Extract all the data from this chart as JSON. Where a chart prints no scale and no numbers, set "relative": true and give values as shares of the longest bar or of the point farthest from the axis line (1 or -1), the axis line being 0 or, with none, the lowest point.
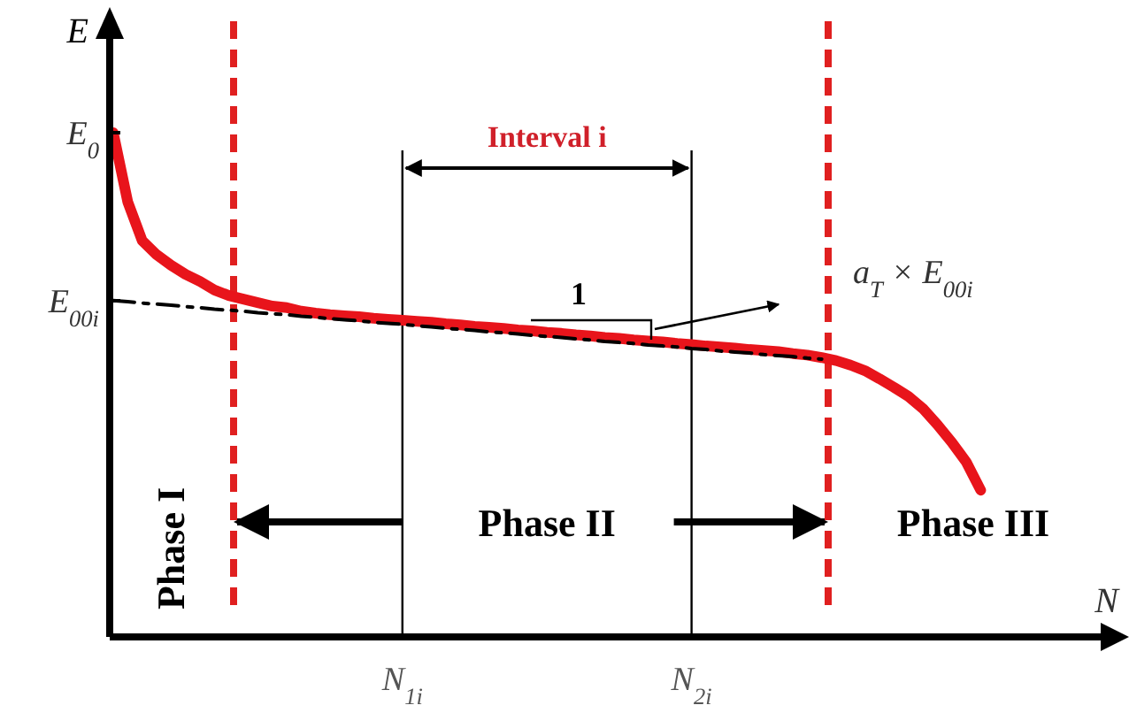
{
  "chart_data": {
    "type": "line",
    "relative": true,
    "xlabel": "N",
    "ylabel": "E",
    "categories": [
      null,
      null,
      null,
      null,
      null,
      null,
      null,
      null,
      null,
      null,
      null,
      null,
      null,
      null,
      null,
      null,
      null,
      null,
      null,
      null,
      "N$_{1i}$",
      null,
      null,
      null,
      null,
      null,
      null,
      null,
      null,
      null,
      null,
      null,
      null,
      null,
      null,
      null,
      null,
      null,
      null,
      null,
      "N$_{2i}$",
      null,
      null,
      null,
      null,
      null,
      null,
      null,
      null,
      null,
      null,
      null,
      null,
      null,
      null,
      null,
      null,
      null,
      null,
      null,
      null
    ],
    "series": [
      {
        "color": "#e8141b",
        "values": [
          1.0,
          0.863,
          0.786,
          0.758,
          0.737,
          0.719,
          0.705,
          0.688,
          0.677,
          0.67,
          0.663,
          0.656,
          0.653,
          0.646,
          0.642,
          0.639,
          0.637,
          0.635,
          0.632,
          0.63,
          0.628,
          0.626,
          0.624,
          0.621,
          0.619,
          0.616,
          0.614,
          0.612,
          0.609,
          0.607,
          0.604,
          0.602,
          0.599,
          0.597,
          0.594,
          0.592,
          0.589,
          0.587,
          0.585,
          0.582,
          0.58,
          0.577,
          0.575,
          0.573,
          0.57,
          0.568,
          0.566,
          0.562,
          0.559,
          0.554,
          0.548,
          0.539,
          0.528,
          0.512,
          0.495,
          0.477,
          0.453,
          0.421,
          0.386,
          0.347,
          0.291
        ]
      },
      {
        "color": "#000000",
        "line_style": "dashed",
        "values": [
          0.667,
          0.665,
          0.662,
          0.66,
          0.658,
          0.655,
          0.653,
          0.65,
          0.648,
          0.646,
          0.643,
          0.641,
          0.639,
          0.636,
          0.634,
          0.631,
          0.629,
          0.627,
          0.624,
          0.622,
          0.62,
          0.617,
          0.615,
          0.612,
          0.61,
          0.608,
          0.605,
          0.603,
          0.601,
          0.598,
          0.596,
          0.594,
          0.591,
          0.589,
          0.586,
          0.584,
          0.582,
          0.579,
          0.577,
          0.575,
          0.572,
          0.57,
          0.567,
          0.565,
          0.563,
          0.56,
          0.558,
          0.556,
          0.553,
          0.551,
          null,
          null,
          null,
          null,
          null,
          null,
          null,
          null,
          null,
          null,
          null
        ]
      }
    ],
    "ref_lines": [
      {
        "axis": "x",
        "value": "N$_{1i}$",
        "color": "#000000",
        "line_style": "solid"
      },
      {
        "axis": "x",
        "value": "N$_{2i}$",
        "color": "#000000",
        "line_style": "solid"
      }
    ],
    "annotations": [
      "Interval i",
      "1",
      "a$_{T}$ × E$_{00i}$",
      "Phase I",
      "Phase II",
      "Phase III",
      "E$_{0}$",
      "E$_{00i}$"
    ]
  }
}
